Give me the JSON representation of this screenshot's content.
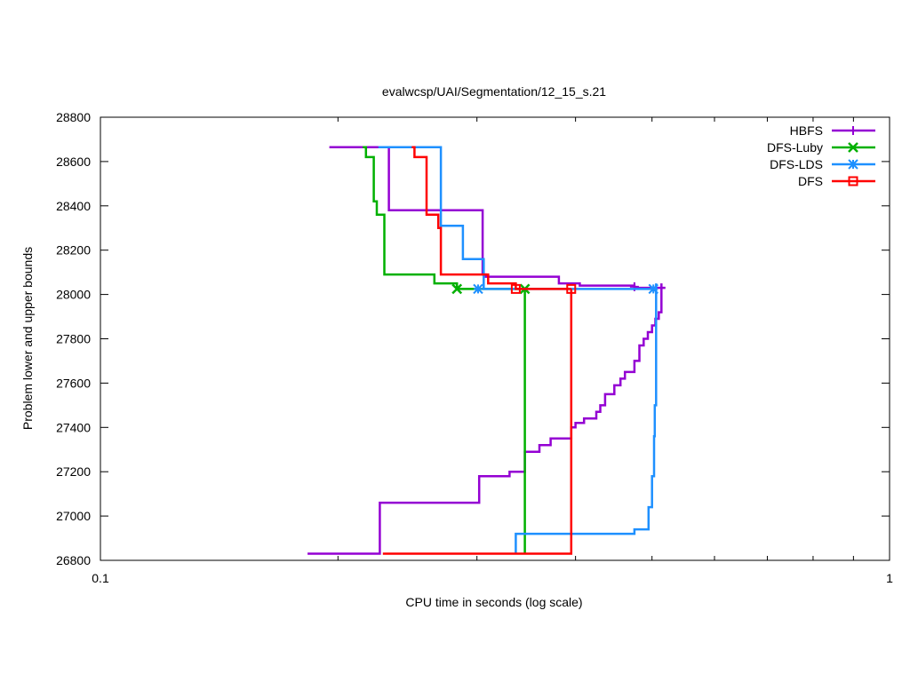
{
  "chart_data": {
    "type": "line",
    "title": "evalwcsp/UAI/Segmentation/12_15_s.21",
    "xlabel": "CPU time in seconds (log scale)",
    "ylabel": "Problem lower and upper bounds",
    "xscale": "log",
    "xlim": [
      0.1,
      1
    ],
    "ylim": [
      26800,
      28800
    ],
    "x_ticks": [
      0.1,
      1
    ],
    "x_tick_labels": [
      "0.1",
      "1"
    ],
    "y_ticks": [
      26800,
      27000,
      27200,
      27400,
      27600,
      27800,
      28000,
      28200,
      28400,
      28600,
      28800
    ],
    "y_tick_labels": [
      "26800",
      "27000",
      "27200",
      "27400",
      "27600",
      "27800",
      "28000",
      "28200",
      "28400",
      "28600",
      "28800"
    ],
    "grid": false,
    "legend_position": "top-right",
    "series": [
      {
        "name": "HBFS",
        "color": "#9400d3",
        "marker": "plus",
        "upper": [
          [
            0.195,
            28665
          ],
          [
            0.232,
            28665
          ],
          [
            0.232,
            28380
          ],
          [
            0.305,
            28380
          ],
          [
            0.305,
            28090
          ],
          [
            0.308,
            28090
          ],
          [
            0.308,
            28080
          ],
          [
            0.381,
            28080
          ],
          [
            0.381,
            28050
          ],
          [
            0.405,
            28050
          ],
          [
            0.405,
            28040
          ],
          [
            0.475,
            28040
          ],
          [
            0.475,
            28030
          ],
          [
            0.52,
            28030
          ]
        ],
        "lower": [
          [
            0.183,
            26830
          ],
          [
            0.226,
            26830
          ],
          [
            0.226,
            27060
          ],
          [
            0.302,
            27060
          ],
          [
            0.302,
            27180
          ],
          [
            0.33,
            27180
          ],
          [
            0.33,
            27200
          ],
          [
            0.345,
            27200
          ],
          [
            0.345,
            27290
          ],
          [
            0.36,
            27290
          ],
          [
            0.36,
            27320
          ],
          [
            0.372,
            27320
          ],
          [
            0.372,
            27350
          ],
          [
            0.395,
            27350
          ],
          [
            0.395,
            27400
          ],
          [
            0.4,
            27400
          ],
          [
            0.4,
            27420
          ],
          [
            0.41,
            27420
          ],
          [
            0.41,
            27440
          ],
          [
            0.425,
            27440
          ],
          [
            0.425,
            27470
          ],
          [
            0.43,
            27470
          ],
          [
            0.43,
            27500
          ],
          [
            0.436,
            27500
          ],
          [
            0.436,
            27550
          ],
          [
            0.448,
            27550
          ],
          [
            0.448,
            27590
          ],
          [
            0.456,
            27590
          ],
          [
            0.456,
            27620
          ],
          [
            0.462,
            27620
          ],
          [
            0.462,
            27650
          ],
          [
            0.475,
            27650
          ],
          [
            0.475,
            27700
          ],
          [
            0.482,
            27700
          ],
          [
            0.482,
            27770
          ],
          [
            0.488,
            27770
          ],
          [
            0.488,
            27800
          ],
          [
            0.494,
            27800
          ],
          [
            0.494,
            27830
          ],
          [
            0.5,
            27830
          ],
          [
            0.5,
            27860
          ],
          [
            0.505,
            27860
          ],
          [
            0.505,
            27890
          ],
          [
            0.51,
            27890
          ],
          [
            0.51,
            27920
          ],
          [
            0.514,
            27920
          ],
          [
            0.514,
            28050
          ]
        ],
        "markers": [
          [
            0.475,
            28035
          ]
        ]
      },
      {
        "name": "DFS-Luby",
        "color": "#00b000",
        "marker": "x",
        "upper": [
          [
            0.215,
            28665
          ],
          [
            0.217,
            28665
          ],
          [
            0.217,
            28620
          ],
          [
            0.222,
            28620
          ],
          [
            0.222,
            28420
          ],
          [
            0.224,
            28420
          ],
          [
            0.224,
            28360
          ],
          [
            0.229,
            28360
          ],
          [
            0.229,
            28090
          ],
          [
            0.265,
            28090
          ],
          [
            0.265,
            28050
          ],
          [
            0.283,
            28050
          ],
          [
            0.283,
            28025
          ],
          [
            0.345,
            28025
          ]
        ],
        "lower": [
          [
            0.345,
            26830
          ],
          [
            0.345,
            28025
          ]
        ],
        "markers": [
          [
            0.283,
            28025
          ],
          [
            0.345,
            28025
          ]
        ]
      },
      {
        "name": "DFS-LDS",
        "color": "#1e90ff",
        "marker": "star",
        "upper": [
          [
            0.225,
            28665
          ],
          [
            0.27,
            28665
          ],
          [
            0.27,
            28310
          ],
          [
            0.288,
            28310
          ],
          [
            0.288,
            28160
          ],
          [
            0.306,
            28160
          ],
          [
            0.306,
            28025
          ],
          [
            0.506,
            28025
          ],
          [
            0.506,
            28050
          ]
        ],
        "lower": [
          [
            0.336,
            26830
          ],
          [
            0.336,
            26920
          ],
          [
            0.475,
            26920
          ],
          [
            0.475,
            26940
          ],
          [
            0.495,
            26940
          ],
          [
            0.495,
            27040
          ],
          [
            0.5,
            27040
          ],
          [
            0.5,
            27180
          ],
          [
            0.503,
            27180
          ],
          [
            0.503,
            27360
          ],
          [
            0.504,
            27360
          ],
          [
            0.504,
            27500
          ],
          [
            0.506,
            27500
          ],
          [
            0.506,
            28040
          ]
        ],
        "markers": [
          [
            0.301,
            28025
          ],
          [
            0.502,
            28025
          ]
        ]
      },
      {
        "name": "DFS",
        "color": "#ff0000",
        "marker": "square",
        "upper": [
          [
            0.248,
            28665
          ],
          [
            0.25,
            28665
          ],
          [
            0.25,
            28620
          ],
          [
            0.259,
            28620
          ],
          [
            0.259,
            28360
          ],
          [
            0.268,
            28360
          ],
          [
            0.268,
            28300
          ],
          [
            0.27,
            28300
          ],
          [
            0.27,
            28090
          ],
          [
            0.31,
            28090
          ],
          [
            0.31,
            28050
          ],
          [
            0.336,
            28050
          ],
          [
            0.336,
            28025
          ],
          [
            0.395,
            28025
          ]
        ],
        "lower": [
          [
            0.228,
            26830
          ],
          [
            0.395,
            26830
          ],
          [
            0.395,
            28025
          ]
        ],
        "markers": [
          [
            0.336,
            28025
          ],
          [
            0.395,
            28025
          ]
        ]
      }
    ]
  }
}
